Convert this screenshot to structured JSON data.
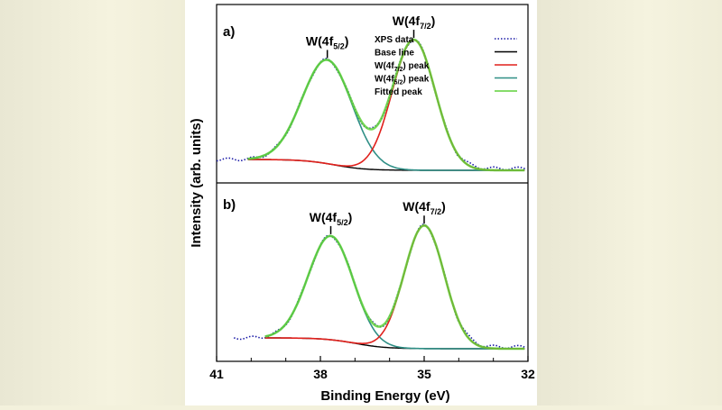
{
  "chart_data": {
    "type": "line",
    "xlabel": "Binding Energy (eV)",
    "ylabel": "Intensity (arb. units)",
    "xlim": [
      41,
      32
    ],
    "x_ticks": [
      41,
      38,
      35,
      32
    ],
    "x_tick_labels": [
      "41",
      "38",
      "35",
      "32"
    ],
    "legend": {
      "location": "top-right",
      "entries": [
        {
          "key": "xps",
          "label": "XPS data",
          "color": "#1a1aa6",
          "style": "dotted"
        },
        {
          "key": "base",
          "label": "Base line",
          "color": "#000000",
          "style": "solid"
        },
        {
          "key": "w72",
          "label": "W(4f7/2) peak",
          "color": "#e0201c",
          "style": "solid"
        },
        {
          "key": "w52",
          "label": "W(4f5/2) peak",
          "color": "#2f8f86",
          "style": "solid"
        },
        {
          "key": "fit",
          "label": "Fitted peak",
          "color": "#5fd13a",
          "style": "solid"
        }
      ]
    },
    "panels": [
      {
        "label": "a)",
        "ylim": [
          0,
          1.15
        ],
        "x_range": [
          40.1,
          32.1
        ],
        "baseline": {
          "left": 0.09,
          "right": 0.0,
          "center": 37.6,
          "width": 1.8
        },
        "peaks": [
          {
            "name": "W(4f5/2)",
            "center": 37.8,
            "height": 0.86,
            "sigma": 0.72
          },
          {
            "name": "W(4f7/2)",
            "center": 35.3,
            "height": 1.08,
            "sigma": 0.62
          }
        ],
        "annotations": [
          {
            "text": "W(4f5/2)",
            "x": 37.8
          },
          {
            "text": "W(4f7/2)",
            "x": 35.3
          }
        ]
      },
      {
        "label": "b)",
        "ylim": [
          0,
          1.15
        ],
        "x_range": [
          39.6,
          32.1
        ],
        "baseline": {
          "left": 0.09,
          "right": 0.0,
          "center": 37.0,
          "width": 1.8
        },
        "peaks": [
          {
            "name": "W(4f5/2)",
            "center": 37.7,
            "height": 0.86,
            "sigma": 0.65
          },
          {
            "name": "W(4f7/2)",
            "center": 35.0,
            "height": 1.02,
            "sigma": 0.58
          }
        ],
        "annotations": [
          {
            "text": "W(4f5/2)",
            "x": 37.7
          },
          {
            "text": "W(4f7/2)",
            "x": 35.0
          }
        ]
      }
    ]
  }
}
